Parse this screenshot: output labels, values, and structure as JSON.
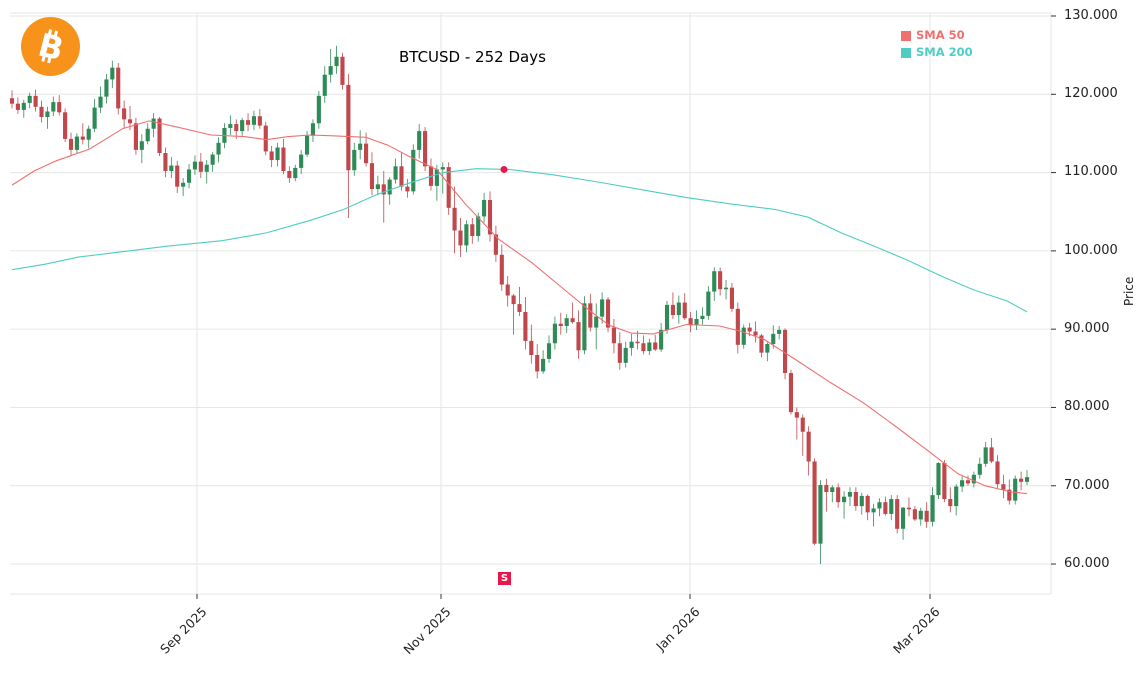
{
  "title": "BTCUSD - 252 Days",
  "logo": {
    "icon": "bitcoin-icon",
    "color": "#f7931a"
  },
  "legend": [
    {
      "label": "SMA 50",
      "color": "#f07070"
    },
    {
      "label": "SMA 200",
      "color": "#4ecdc4"
    }
  ],
  "axis": {
    "ylabel": "Price",
    "yticks": [
      "130.000",
      "120.000",
      "110.000",
      "100.000",
      "90.000",
      "80.000",
      "70.000",
      "60.000"
    ],
    "xticks": [
      "Sep 2025",
      "Nov 2025",
      "Jan 2026",
      "Mar 2026"
    ]
  },
  "signal": {
    "label": "S",
    "color": "#e8174a"
  },
  "colors": {
    "up": "#2e8b57",
    "down": "#c0474c",
    "grid": "#e6e6e6"
  },
  "chart_data": {
    "type": "candlestick",
    "title": "BTCUSD - 252 Days",
    "xlabel": "",
    "ylabel": "Price",
    "ylim": [
      55500,
      130000
    ],
    "x_range": [
      "2025-07",
      "2026-03"
    ],
    "xticks": [
      "Sep 2025",
      "Nov 2025",
      "Jan 2026",
      "Mar 2026"
    ],
    "yticks": [
      60000,
      70000,
      80000,
      90000,
      100000,
      110000,
      120000,
      130000
    ],
    "grid": true,
    "legend_position": "upper right",
    "series": [
      {
        "name": "SMA 50",
        "color": "#f07070",
        "points": [
          [
            0,
            108400
          ],
          [
            10,
            110200
          ],
          [
            20,
            111500
          ],
          [
            35,
            113000
          ],
          [
            50,
            115600
          ],
          [
            62,
            116600
          ],
          [
            75,
            115800
          ],
          [
            90,
            114800
          ],
          [
            105,
            114600
          ],
          [
            115,
            114200
          ],
          [
            125,
            114600
          ],
          [
            135,
            114800
          ],
          [
            145,
            114700
          ],
          [
            160,
            114500
          ],
          [
            170,
            113500
          ],
          [
            180,
            112000
          ],
          [
            192,
            110400
          ],
          [
            205,
            106000
          ],
          [
            220,
            101500
          ],
          [
            235,
            98500
          ],
          [
            250,
            95000
          ],
          [
            262,
            92200
          ],
          [
            270,
            90500
          ],
          [
            280,
            89500
          ],
          [
            290,
            89400
          ],
          [
            305,
            90600
          ],
          [
            320,
            90400
          ],
          [
            330,
            89700
          ],
          [
            340,
            88700
          ],
          [
            355,
            86000
          ],
          [
            370,
            83200
          ],
          [
            385,
            80600
          ],
          [
            400,
            77500
          ],
          [
            415,
            74300
          ],
          [
            428,
            71500
          ],
          [
            440,
            70000
          ],
          [
            452,
            69200
          ],
          [
            459,
            69000
          ]
        ]
      },
      {
        "name": "SMA 200",
        "color": "#4ecdc4",
        "points": [
          [
            0,
            97600
          ],
          [
            15,
            98300
          ],
          [
            30,
            99200
          ],
          [
            50,
            99900
          ],
          [
            70,
            100600
          ],
          [
            95,
            101300
          ],
          [
            115,
            102300
          ],
          [
            135,
            103900
          ],
          [
            150,
            105300
          ],
          [
            165,
            107200
          ],
          [
            180,
            108700
          ],
          [
            195,
            110000
          ],
          [
            210,
            110500
          ],
          [
            225,
            110400
          ],
          [
            245,
            109700
          ],
          [
            265,
            108800
          ],
          [
            285,
            107800
          ],
          [
            305,
            106800
          ],
          [
            325,
            106000
          ],
          [
            345,
            105300
          ],
          [
            360,
            104300
          ],
          [
            375,
            102300
          ],
          [
            390,
            100600
          ],
          [
            405,
            98800
          ],
          [
            420,
            96800
          ],
          [
            435,
            95000
          ],
          [
            450,
            93600
          ],
          [
            459,
            92200
          ]
        ]
      }
    ],
    "signals": [
      {
        "type": "sell",
        "label": "S",
        "index": 221,
        "price": 58200,
        "note": "SMA50 crosses below SMA200 near 110.400"
      }
    ],
    "candles_ohlc": [
      [
        119500,
        120500,
        118200,
        118800
      ],
      [
        118800,
        119600,
        117500,
        118000
      ],
      [
        118000,
        119300,
        117000,
        118900
      ],
      [
        118900,
        120200,
        118200,
        119800
      ],
      [
        119800,
        120600,
        117800,
        118400
      ],
      [
        118400,
        119200,
        116400,
        117100
      ],
      [
        117100,
        118400,
        115600,
        117800
      ],
      [
        117800,
        119700,
        117200,
        119000
      ],
      [
        119000,
        119900,
        117300,
        117700
      ],
      [
        117700,
        118200,
        113900,
        114300
      ],
      [
        114300,
        115100,
        112100,
        112900
      ],
      [
        112900,
        115000,
        112400,
        114600
      ],
      [
        114600,
        116300,
        113600,
        114200
      ],
      [
        114200,
        116000,
        113100,
        115600
      ],
      [
        115600,
        119400,
        115200,
        118300
      ],
      [
        118300,
        121000,
        117600,
        119700
      ],
      [
        119700,
        122600,
        118800,
        121900
      ],
      [
        121900,
        124300,
        120800,
        123400
      ],
      [
        123400,
        124000,
        117400,
        118200
      ],
      [
        118200,
        119200,
        115700,
        116800
      ],
      [
        116800,
        118500,
        115400,
        116300
      ],
      [
        116300,
        117000,
        112300,
        112900
      ],
      [
        112900,
        114900,
        111200,
        114000
      ],
      [
        114000,
        116300,
        113600,
        115600
      ],
      [
        115600,
        117600,
        114500,
        116900
      ],
      [
        116900,
        117100,
        112100,
        112500
      ],
      [
        112500,
        113200,
        109400,
        110200
      ],
      [
        110200,
        112000,
        109300,
        110900
      ],
      [
        110900,
        111500,
        107400,
        108200
      ],
      [
        108200,
        109300,
        107000,
        108700
      ],
      [
        108700,
        111100,
        108000,
        110400
      ],
      [
        110400,
        112200,
        109700,
        111400
      ],
      [
        111400,
        112500,
        109300,
        110100
      ],
      [
        110100,
        111600,
        108600,
        111000
      ],
      [
        111000,
        112600,
        110100,
        112300
      ],
      [
        112300,
        114500,
        111300,
        113800
      ],
      [
        113800,
        116300,
        113100,
        115700
      ],
      [
        115700,
        117300,
        114800,
        116200
      ],
      [
        116200,
        116800,
        114300,
        115300
      ],
      [
        115300,
        117000,
        114700,
        116700
      ],
      [
        116700,
        117600,
        115300,
        116100
      ],
      [
        116100,
        117900,
        115400,
        117200
      ],
      [
        117200,
        118100,
        115600,
        116000
      ],
      [
        116000,
        116500,
        112200,
        112700
      ],
      [
        112700,
        113400,
        110700,
        111600
      ],
      [
        111600,
        113800,
        110800,
        113200
      ],
      [
        113200,
        114300,
        109800,
        110200
      ],
      [
        110200,
        110800,
        108700,
        109300
      ],
      [
        109300,
        111000,
        108900,
        110600
      ],
      [
        110600,
        112900,
        109800,
        112300
      ],
      [
        112300,
        115300,
        112000,
        114700
      ],
      [
        114700,
        116800,
        113900,
        116300
      ],
      [
        116300,
        120400,
        115600,
        119800
      ],
      [
        119800,
        123600,
        118900,
        122500
      ],
      [
        122500,
        125800,
        121500,
        123600
      ],
      [
        123600,
        126200,
        122600,
        124800
      ],
      [
        124800,
        125300,
        120600,
        121200
      ],
      [
        121200,
        122600,
        104200,
        110300
      ],
      [
        110300,
        113800,
        109600,
        112900
      ],
      [
        112900,
        115400,
        111700,
        113700
      ],
      [
        113700,
        115100,
        110800,
        111200
      ],
      [
        111200,
        112600,
        107100,
        107900
      ],
      [
        107900,
        109600,
        107100,
        108500
      ],
      [
        108500,
        110200,
        103600,
        107200
      ],
      [
        107200,
        109400,
        105900,
        109100
      ],
      [
        109100,
        111800,
        108600,
        110800
      ],
      [
        110800,
        112600,
        107700,
        108200
      ],
      [
        108200,
        109200,
        106800,
        107600
      ],
      [
        107600,
        113600,
        107200,
        112900
      ],
      [
        112900,
        116200,
        111800,
        115300
      ],
      [
        115300,
        115800,
        110200,
        110800
      ],
      [
        110800,
        111800,
        107700,
        108300
      ],
      [
        108300,
        111000,
        106400,
        110400
      ],
      [
        110400,
        111300,
        107300,
        110700
      ],
      [
        110700,
        111300,
        104600,
        105500
      ],
      [
        105500,
        108200,
        99700,
        102600
      ],
      [
        102600,
        104200,
        99200,
        100700
      ],
      [
        100700,
        103900,
        99800,
        103400
      ],
      [
        103400,
        104200,
        100900,
        101900
      ],
      [
        101900,
        104900,
        101200,
        104400
      ],
      [
        104400,
        107400,
        103600,
        106500
      ],
      [
        106500,
        107600,
        101200,
        102100
      ],
      [
        102100,
        103200,
        98600,
        99500
      ],
      [
        99500,
        100800,
        94900,
        95700
      ],
      [
        95700,
        96800,
        92900,
        94300
      ],
      [
        94300,
        94500,
        89300,
        93200
      ],
      [
        93200,
        95400,
        91700,
        92200
      ],
      [
        92200,
        94100,
        87400,
        88500
      ],
      [
        88500,
        90600,
        85600,
        86700
      ],
      [
        86700,
        88100,
        83700,
        84600
      ],
      [
        84600,
        87300,
        84300,
        86200
      ],
      [
        86200,
        89200,
        85700,
        88200
      ],
      [
        88200,
        91600,
        87400,
        90700
      ],
      [
        90700,
        92100,
        89300,
        90400
      ],
      [
        90400,
        91900,
        89500,
        91400
      ],
      [
        91400,
        93400,
        90700,
        90900
      ],
      [
        90900,
        92400,
        86200,
        87300
      ],
      [
        87300,
        94200,
        86800,
        93300
      ],
      [
        93300,
        94500,
        89700,
        90200
      ],
      [
        90200,
        93300,
        87400,
        91600
      ],
      [
        91600,
        94700,
        90700,
        93800
      ],
      [
        93800,
        94100,
        89600,
        90200
      ],
      [
        90200,
        91300,
        86900,
        88200
      ],
      [
        88200,
        89600,
        84800,
        85700
      ],
      [
        85700,
        88400,
        85100,
        87600
      ],
      [
        87600,
        89400,
        86600,
        88400
      ],
      [
        88400,
        89800,
        87400,
        88200
      ],
      [
        88200,
        89200,
        86800,
        87200
      ],
      [
        87200,
        88800,
        86700,
        88300
      ],
      [
        88300,
        89300,
        87200,
        87400
      ],
      [
        87400,
        90800,
        87100,
        89900
      ],
      [
        89900,
        93600,
        89400,
        93100
      ],
      [
        93100,
        94700,
        91300,
        91800
      ],
      [
        91800,
        94300,
        90700,
        93400
      ],
      [
        93400,
        94600,
        91200,
        91400
      ],
      [
        91400,
        92200,
        89600,
        90500
      ],
      [
        90500,
        92400,
        89900,
        91300
      ],
      [
        91300,
        92800,
        90600,
        91700
      ],
      [
        91700,
        95500,
        91200,
        94800
      ],
      [
        94800,
        97900,
        93600,
        97400
      ],
      [
        97400,
        97900,
        94300,
        95100
      ],
      [
        95100,
        96300,
        93800,
        95300
      ],
      [
        95300,
        95900,
        92200,
        92600
      ],
      [
        92600,
        93400,
        86900,
        88000
      ],
      [
        88000,
        90600,
        87500,
        90200
      ],
      [
        90200,
        90800,
        89100,
        89700
      ],
      [
        89700,
        91000,
        88300,
        89200
      ],
      [
        89200,
        89400,
        86400,
        87000
      ],
      [
        87000,
        88300,
        85900,
        88100
      ],
      [
        88100,
        90500,
        87500,
        89400
      ],
      [
        89400,
        90400,
        88700,
        89900
      ],
      [
        89900,
        90100,
        83600,
        84400
      ],
      [
        84400,
        84800,
        79100,
        79400
      ],
      [
        79400,
        80000,
        75900,
        78700
      ],
      [
        78700,
        79100,
        73800,
        76900
      ],
      [
        76900,
        77600,
        71300,
        73100
      ],
      [
        73100,
        73500,
        62400,
        62600
      ],
      [
        62600,
        70700,
        60000,
        70100
      ],
      [
        70100,
        70900,
        66700,
        69200
      ],
      [
        69200,
        70100,
        67900,
        69800
      ],
      [
        69800,
        70300,
        67200,
        67900
      ],
      [
        67900,
        69300,
        65800,
        68600
      ],
      [
        68600,
        69800,
        67400,
        69200
      ],
      [
        69200,
        69800,
        66800,
        67400
      ],
      [
        67400,
        69100,
        66300,
        68700
      ],
      [
        68700,
        68900,
        65600,
        66600
      ],
      [
        66600,
        67700,
        64800,
        67100
      ],
      [
        67100,
        68400,
        66100,
        67900
      ],
      [
        67900,
        68600,
        66200,
        66400
      ],
      [
        66400,
        68800,
        65600,
        68300
      ],
      [
        68300,
        68800,
        63900,
        64500
      ],
      [
        64500,
        67300,
        63100,
        67200
      ],
      [
        67200,
        68500,
        66100,
        67000
      ],
      [
        67000,
        67400,
        65500,
        65700
      ],
      [
        65700,
        67200,
        64900,
        66800
      ],
      [
        66800,
        67900,
        64600,
        65400
      ],
      [
        65400,
        69800,
        64800,
        68800
      ],
      [
        68800,
        73000,
        68300,
        72900
      ],
      [
        72900,
        73300,
        67900,
        68300
      ],
      [
        68300,
        69800,
        66600,
        67400
      ],
      [
        67400,
        70200,
        66200,
        69900
      ],
      [
        69900,
        71200,
        69200,
        70700
      ],
      [
        70700,
        71300,
        70000,
        70300
      ],
      [
        70300,
        71800,
        69800,
        71400
      ],
      [
        71400,
        73600,
        70900,
        72800
      ],
      [
        72800,
        75600,
        72400,
        74900
      ],
      [
        74900,
        76100,
        72900,
        73100
      ],
      [
        73100,
        73900,
        69600,
        70200
      ],
      [
        70200,
        71400,
        68400,
        69500
      ],
      [
        69500,
        70800,
        67600,
        68100
      ],
      [
        68100,
        71300,
        67600,
        70900
      ],
      [
        70900,
        71800,
        69400,
        70500
      ],
      [
        70500,
        72000,
        70100,
        71100
      ]
    ]
  }
}
